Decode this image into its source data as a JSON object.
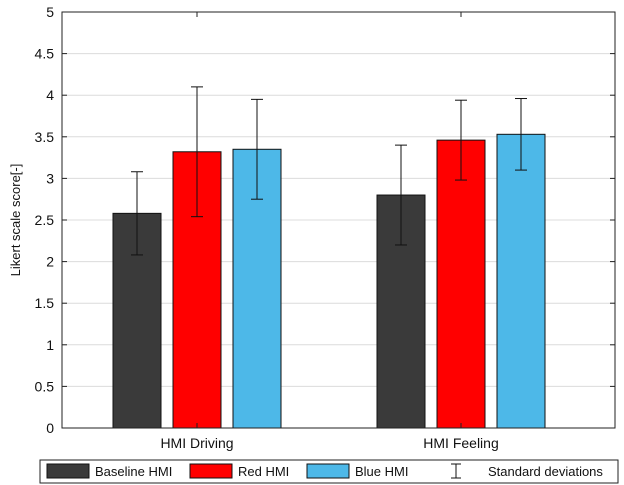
{
  "chart_data": {
    "type": "bar",
    "title": "",
    "xlabel": "",
    "ylabel": "Likert scale score[-]",
    "ylim": [
      0,
      5
    ],
    "yticks": [
      0,
      0.5,
      1,
      1.5,
      2,
      2.5,
      3,
      3.5,
      4,
      4.5,
      5
    ],
    "ytick_labels": [
      "0",
      "0.5",
      "1",
      "1.5",
      "2",
      "2.5",
      "3",
      "3.5",
      "4",
      "4.5",
      "5"
    ],
    "grid": true,
    "legend_position": "bottom",
    "categories": [
      "HMI Driving",
      "HMI Feeling"
    ],
    "series": [
      {
        "name": "Baseline HMI",
        "color": "#3a3a3a",
        "values": [
          2.58,
          2.8
        ],
        "std": [
          0.5,
          0.6
        ]
      },
      {
        "name": "Red HMI",
        "color": "#ff0000",
        "values": [
          3.32,
          3.46
        ],
        "std": [
          0.78,
          0.48
        ]
      },
      {
        "name": "Blue HMI",
        "color": "#4db8e8",
        "values": [
          3.35,
          3.53
        ],
        "std": [
          0.6,
          0.43
        ]
      }
    ],
    "error_legend_label": "Standard deviations"
  }
}
